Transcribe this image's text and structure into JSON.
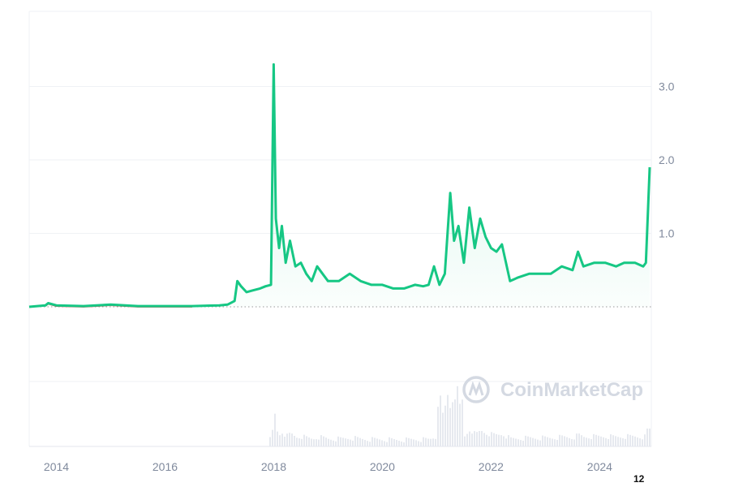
{
  "chart_data": {
    "type": "line",
    "title": "",
    "xlabel": "",
    "ylabel": "",
    "x_ticks": [
      "2014",
      "2016",
      "2018",
      "2020",
      "2022",
      "2024"
    ],
    "y_ticks": [
      "1.0",
      "2.0",
      "3.0"
    ],
    "ylim": [
      -1.0,
      4.0
    ],
    "xlim": [
      2013.5,
      2024.95
    ],
    "baseline": 0,
    "grid": true,
    "legend": "none",
    "colors": {
      "line_up": "#16c784",
      "line_down": "#ea3943",
      "baseline": "#999999",
      "volume": "#e6e9ef"
    },
    "watermark": "CoinMarketCap",
    "corner_label": "12",
    "series": [
      {
        "values": [
          [
            2013.5,
            0.0
          ],
          [
            2013.8,
            0.02
          ],
          [
            2013.85,
            0.05
          ],
          [
            2014.0,
            0.02
          ],
          [
            2014.5,
            0.01
          ],
          [
            2015.0,
            0.03
          ],
          [
            2015.5,
            0.01
          ],
          [
            2016.0,
            0.01
          ],
          [
            2016.5,
            0.01
          ],
          [
            2017.0,
            0.02
          ],
          [
            2017.15,
            0.03
          ],
          [
            2017.28,
            0.08
          ],
          [
            2017.33,
            0.35
          ],
          [
            2017.4,
            0.28
          ],
          [
            2017.5,
            0.2
          ],
          [
            2017.6,
            0.22
          ],
          [
            2017.75,
            0.25
          ],
          [
            2017.85,
            0.28
          ],
          [
            2017.95,
            0.3
          ],
          [
            2018.0,
            3.3
          ],
          [
            2018.04,
            1.2
          ],
          [
            2018.1,
            0.8
          ],
          [
            2018.15,
            1.1
          ],
          [
            2018.22,
            0.6
          ],
          [
            2018.3,
            0.9
          ],
          [
            2018.4,
            0.55
          ],
          [
            2018.5,
            0.6
          ],
          [
            2018.6,
            0.45
          ],
          [
            2018.7,
            0.35
          ],
          [
            2018.8,
            0.55
          ],
          [
            2018.9,
            0.45
          ],
          [
            2019.0,
            0.35
          ],
          [
            2019.2,
            0.35
          ],
          [
            2019.4,
            0.45
          ],
          [
            2019.6,
            0.35
          ],
          [
            2019.8,
            0.3
          ],
          [
            2020.0,
            0.3
          ],
          [
            2020.2,
            0.25
          ],
          [
            2020.4,
            0.25
          ],
          [
            2020.6,
            0.3
          ],
          [
            2020.75,
            0.28
          ],
          [
            2020.85,
            0.3
          ],
          [
            2020.95,
            0.55
          ],
          [
            2021.05,
            0.3
          ],
          [
            2021.15,
            0.45
          ],
          [
            2021.25,
            1.55
          ],
          [
            2021.32,
            0.9
          ],
          [
            2021.4,
            1.1
          ],
          [
            2021.5,
            0.6
          ],
          [
            2021.6,
            1.35
          ],
          [
            2021.7,
            0.8
          ],
          [
            2021.8,
            1.2
          ],
          [
            2021.9,
            0.95
          ],
          [
            2022.0,
            0.8
          ],
          [
            2022.1,
            0.75
          ],
          [
            2022.2,
            0.85
          ],
          [
            2022.35,
            0.35
          ],
          [
            2022.5,
            0.4
          ],
          [
            2022.7,
            0.45
          ],
          [
            2022.9,
            0.45
          ],
          [
            2023.1,
            0.45
          ],
          [
            2023.3,
            0.55
          ],
          [
            2023.5,
            0.5
          ],
          [
            2023.6,
            0.75
          ],
          [
            2023.7,
            0.55
          ],
          [
            2023.9,
            0.6
          ],
          [
            2024.1,
            0.6
          ],
          [
            2024.3,
            0.55
          ],
          [
            2024.45,
            0.6
          ],
          [
            2024.65,
            0.6
          ],
          [
            2024.8,
            0.55
          ],
          [
            2024.85,
            0.6
          ],
          [
            2024.92,
            1.9
          ]
        ]
      }
    ]
  }
}
